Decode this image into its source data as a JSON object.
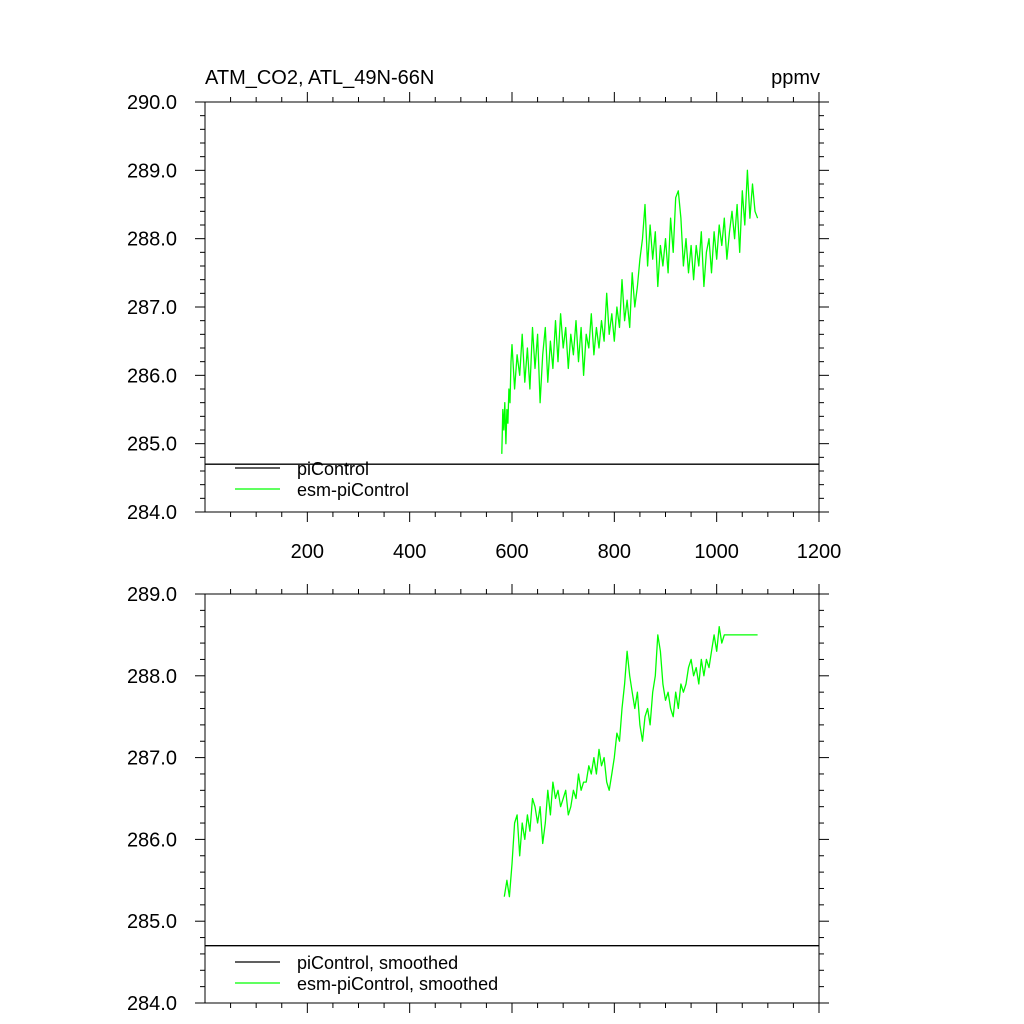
{
  "chart_data": [
    {
      "type": "line",
      "title_left": "ATM_CO2, ATL_49N-66N",
      "title_right": "ppmv",
      "xlim": [
        0,
        1200
      ],
      "ylim": [
        284.0,
        290.0
      ],
      "x_ticks": [
        200,
        400,
        600,
        800,
        1000,
        1200
      ],
      "x_tick_labels": [
        "200",
        "400",
        "600",
        "800",
        "1000",
        "1200"
      ],
      "y_ticks": [
        284.0,
        285.0,
        286.0,
        287.0,
        288.0,
        289.0,
        290.0
      ],
      "y_tick_labels": [
        "284.0",
        "285.0",
        "286.0",
        "287.0",
        "288.0",
        "289.0",
        "290.0"
      ],
      "legend": [
        "piControl",
        "esm-piControl"
      ],
      "series": [
        {
          "name": "piControl",
          "color": "#000000",
          "x": [
            0,
            1200
          ],
          "y": [
            284.7,
            284.7
          ]
        },
        {
          "name": "esm-piControl",
          "color": "#00ff00",
          "x": [
            580,
            582,
            584,
            586,
            588,
            590,
            592,
            594,
            596,
            598,
            600,
            605,
            610,
            615,
            620,
            625,
            630,
            635,
            640,
            645,
            650,
            655,
            660,
            665,
            670,
            675,
            680,
            685,
            690,
            695,
            700,
            705,
            710,
            715,
            720,
            725,
            730,
            735,
            740,
            745,
            750,
            755,
            760,
            765,
            770,
            775,
            780,
            785,
            790,
            795,
            800,
            805,
            810,
            815,
            820,
            825,
            830,
            835,
            840,
            845,
            850,
            855,
            860,
            865,
            870,
            875,
            880,
            885,
            890,
            895,
            900,
            905,
            910,
            915,
            920,
            925,
            930,
            935,
            940,
            945,
            950,
            955,
            960,
            965,
            970,
            975,
            980,
            985,
            990,
            995,
            1000,
            1005,
            1010,
            1015,
            1020,
            1025,
            1030,
            1035,
            1040,
            1045,
            1050,
            1055,
            1060,
            1065,
            1070,
            1075,
            1080
          ],
          "y": [
            284.85,
            285.5,
            285.2,
            285.6,
            285.0,
            285.5,
            285.3,
            285.8,
            285.6,
            286.2,
            286.45,
            285.8,
            286.3,
            286.0,
            286.6,
            285.9,
            286.4,
            285.8,
            286.7,
            286.1,
            286.6,
            285.6,
            286.3,
            286.7,
            285.9,
            286.5,
            286.1,
            286.8,
            286.2,
            286.9,
            286.4,
            286.7,
            286.1,
            286.6,
            286.3,
            286.8,
            286.2,
            286.7,
            286.0,
            286.6,
            286.4,
            286.9,
            286.3,
            286.7,
            286.4,
            286.8,
            286.5,
            287.2,
            286.6,
            286.9,
            286.5,
            287.0,
            286.7,
            287.4,
            286.8,
            287.1,
            286.7,
            287.5,
            287.0,
            287.3,
            287.7,
            288.0,
            288.5,
            287.6,
            288.2,
            287.7,
            288.1,
            287.3,
            287.9,
            287.6,
            288.0,
            287.5,
            288.3,
            287.8,
            288.6,
            288.7,
            288.3,
            287.6,
            288.0,
            287.5,
            287.9,
            287.4,
            287.9,
            287.6,
            288.1,
            287.3,
            287.8,
            288.0,
            287.5,
            288.1,
            287.7,
            288.2,
            287.9,
            288.3,
            287.7,
            288.1,
            288.4,
            288.0,
            288.5,
            287.8,
            288.7,
            288.2,
            289.0,
            288.3,
            288.8,
            288.4,
            288.3
          ]
        }
      ]
    },
    {
      "type": "line",
      "xlim": [
        0,
        1200
      ],
      "ylim": [
        284.0,
        289.0
      ],
      "x_ticks": [
        200,
        400,
        600,
        800,
        1000,
        1200
      ],
      "y_ticks": [
        284.0,
        285.0,
        286.0,
        287.0,
        288.0,
        289.0
      ],
      "y_tick_labels": [
        "284.0",
        "285.0",
        "286.0",
        "287.0",
        "288.0",
        "289.0"
      ],
      "legend": [
        "piControl, smoothed",
        "esm-piControl, smoothed"
      ],
      "series": [
        {
          "name": "piControl, smoothed",
          "color": "#000000",
          "x": [
            0,
            1200
          ],
          "y": [
            284.7,
            284.7
          ]
        },
        {
          "name": "esm-piControl, smoothed",
          "color": "#00ff00",
          "x": [
            585,
            590,
            595,
            600,
            605,
            610,
            615,
            620,
            625,
            630,
            635,
            640,
            645,
            650,
            655,
            660,
            665,
            670,
            675,
            680,
            685,
            690,
            695,
            700,
            705,
            710,
            715,
            720,
            725,
            730,
            735,
            740,
            745,
            750,
            755,
            760,
            765,
            770,
            775,
            780,
            785,
            790,
            795,
            800,
            805,
            810,
            815,
            820,
            825,
            830,
            835,
            840,
            845,
            850,
            855,
            860,
            865,
            870,
            875,
            880,
            885,
            890,
            895,
            900,
            905,
            910,
            915,
            920,
            925,
            930,
            935,
            940,
            945,
            950,
            955,
            960,
            965,
            970,
            975,
            980,
            985,
            990,
            995,
            1000,
            1005,
            1010,
            1015,
            1020,
            1025,
            1030,
            1035,
            1040,
            1045,
            1050,
            1055,
            1060,
            1065,
            1070,
            1075,
            1080
          ],
          "y": [
            285.3,
            285.5,
            285.3,
            285.7,
            286.2,
            286.3,
            285.8,
            286.2,
            286.0,
            286.3,
            286.1,
            286.5,
            286.4,
            286.2,
            286.4,
            285.95,
            286.2,
            286.6,
            286.3,
            286.7,
            286.5,
            286.6,
            286.4,
            286.5,
            286.6,
            286.3,
            286.4,
            286.6,
            286.5,
            286.8,
            286.6,
            286.7,
            286.7,
            286.9,
            286.8,
            287.0,
            286.8,
            287.1,
            286.9,
            287.0,
            286.7,
            286.6,
            286.8,
            287.0,
            287.3,
            287.2,
            287.6,
            287.9,
            288.3,
            288.0,
            287.8,
            287.6,
            287.8,
            287.4,
            287.2,
            287.5,
            287.6,
            287.4,
            287.8,
            288.0,
            288.5,
            288.3,
            287.9,
            287.7,
            287.8,
            287.6,
            287.5,
            287.8,
            287.6,
            287.9,
            287.8,
            287.9,
            288.1,
            288.2,
            288.0,
            288.1,
            287.9,
            288.2,
            288.0,
            288.2,
            288.1,
            288.3,
            288.5,
            288.3,
            288.6,
            288.4,
            288.5,
            288.5,
            288.5,
            288.5,
            288.5,
            288.5,
            288.5,
            288.5,
            288.5,
            288.5,
            288.5,
            288.5,
            288.5,
            288.5
          ]
        }
      ]
    }
  ]
}
